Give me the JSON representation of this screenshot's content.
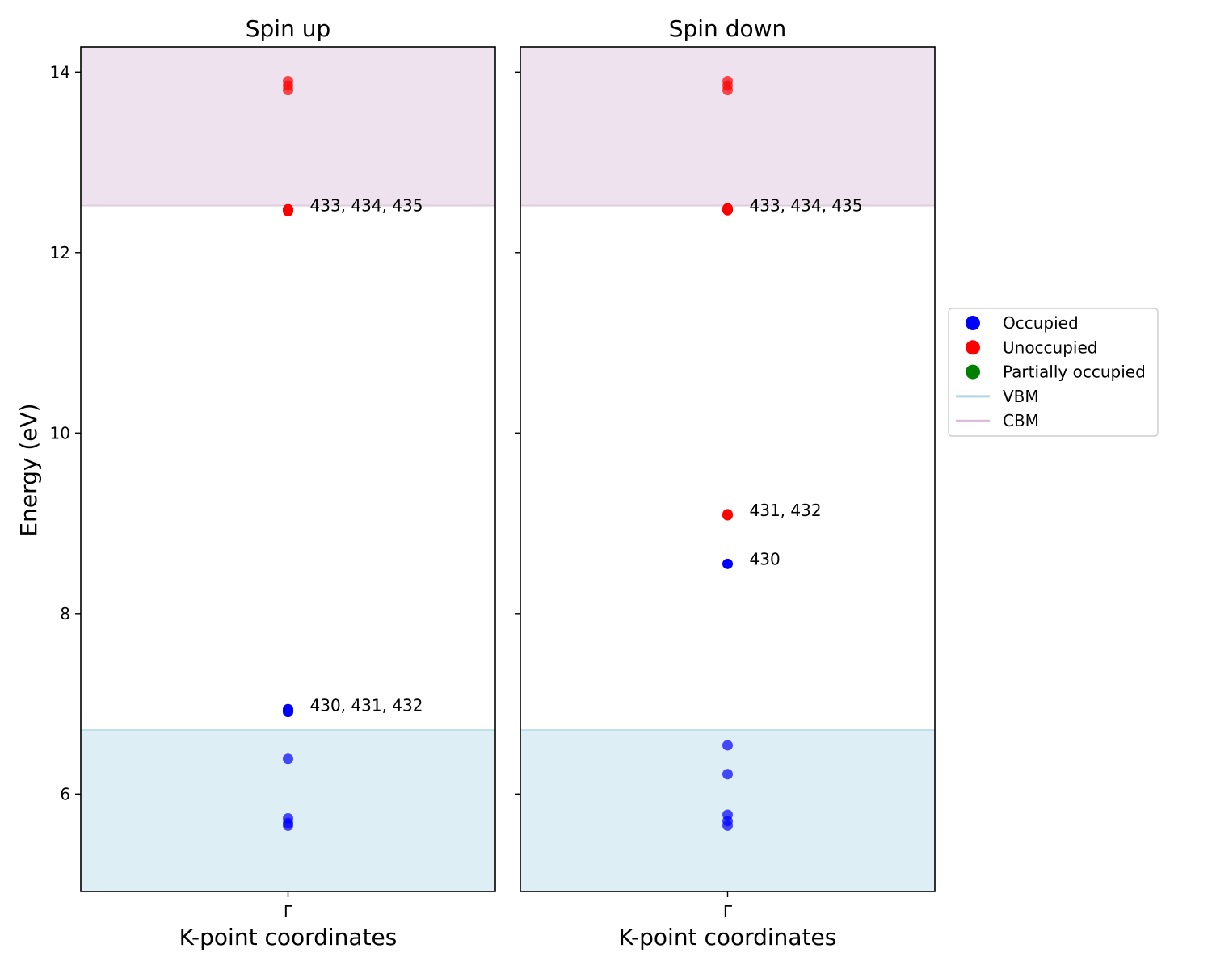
{
  "chart_data": {
    "type": "scatter",
    "ylabel": "Energy (eV)",
    "ylim": [
      4.92,
      14.28
    ],
    "yticks": [
      6,
      8,
      10,
      12,
      14
    ],
    "vbm": 6.71,
    "cbm": 12.52,
    "colors": {
      "occupied": "#0000ff",
      "unoccupied": "#ff0000",
      "partial": "#008000",
      "vbm_band": "#add8e6",
      "cbm_band": "#d8bfd8",
      "vbm_line": "#add8e6",
      "cbm_line": "#d8bfd8"
    },
    "panels": [
      {
        "title": "Spin up",
        "xlabel": "K-point coordinates",
        "xtick": "Γ",
        "points": [
          {
            "y": 5.65,
            "state": "occupied",
            "faded": true
          },
          {
            "y": 5.68,
            "state": "occupied",
            "faded": true
          },
          {
            "y": 5.73,
            "state": "occupied",
            "faded": true
          },
          {
            "y": 6.39,
            "state": "occupied",
            "faded": true
          },
          {
            "y": 6.91,
            "state": "occupied",
            "faded": false
          },
          {
            "y": 6.93,
            "state": "occupied",
            "faded": false
          },
          {
            "y": 6.94,
            "state": "occupied",
            "faded": false
          },
          {
            "y": 12.46,
            "state": "unoccupied",
            "faded": false
          },
          {
            "y": 12.47,
            "state": "unoccupied",
            "faded": false
          },
          {
            "y": 12.48,
            "state": "unoccupied",
            "faded": false
          },
          {
            "y": 13.8,
            "state": "unoccupied",
            "faded": true
          },
          {
            "y": 13.85,
            "state": "unoccupied",
            "faded": true
          },
          {
            "y": 13.9,
            "state": "unoccupied",
            "faded": true
          }
        ],
        "annotations": [
          {
            "y": 6.93,
            "text": "430, 431, 432"
          },
          {
            "y": 12.47,
            "text": "433, 434, 435"
          }
        ]
      },
      {
        "title": "Spin down",
        "xlabel": "K-point coordinates",
        "xtick": "Γ",
        "points": [
          {
            "y": 5.65,
            "state": "occupied",
            "faded": true
          },
          {
            "y": 5.7,
            "state": "occupied",
            "faded": true
          },
          {
            "y": 5.77,
            "state": "occupied",
            "faded": true
          },
          {
            "y": 6.22,
            "state": "occupied",
            "faded": true
          },
          {
            "y": 6.54,
            "state": "occupied",
            "faded": true
          },
          {
            "y": 8.55,
            "state": "occupied",
            "faded": false
          },
          {
            "y": 9.09,
            "state": "unoccupied",
            "faded": false
          },
          {
            "y": 9.1,
            "state": "unoccupied",
            "faded": false
          },
          {
            "y": 12.47,
            "state": "unoccupied",
            "faded": false
          },
          {
            "y": 12.48,
            "state": "unoccupied",
            "faded": false
          },
          {
            "y": 12.49,
            "state": "unoccupied",
            "faded": false
          },
          {
            "y": 13.8,
            "state": "unoccupied",
            "faded": true
          },
          {
            "y": 13.85,
            "state": "unoccupied",
            "faded": true
          },
          {
            "y": 13.9,
            "state": "unoccupied",
            "faded": true
          }
        ],
        "annotations": [
          {
            "y": 8.55,
            "text": "430"
          },
          {
            "y": 9.09,
            "text": "431, 432"
          },
          {
            "y": 12.47,
            "text": "433, 434, 435"
          }
        ]
      }
    ],
    "legend": {
      "placement": "right",
      "entries": [
        {
          "label": "Occupied",
          "kind": "marker",
          "color": "#0000ff"
        },
        {
          "label": "Unoccupied",
          "kind": "marker",
          "color": "#ff0000"
        },
        {
          "label": "Partially occupied",
          "kind": "marker",
          "color": "#008000"
        },
        {
          "label": "VBM",
          "kind": "line",
          "color": "#add8e6"
        },
        {
          "label": "CBM",
          "kind": "line",
          "color": "#d8bfd8"
        }
      ]
    }
  }
}
